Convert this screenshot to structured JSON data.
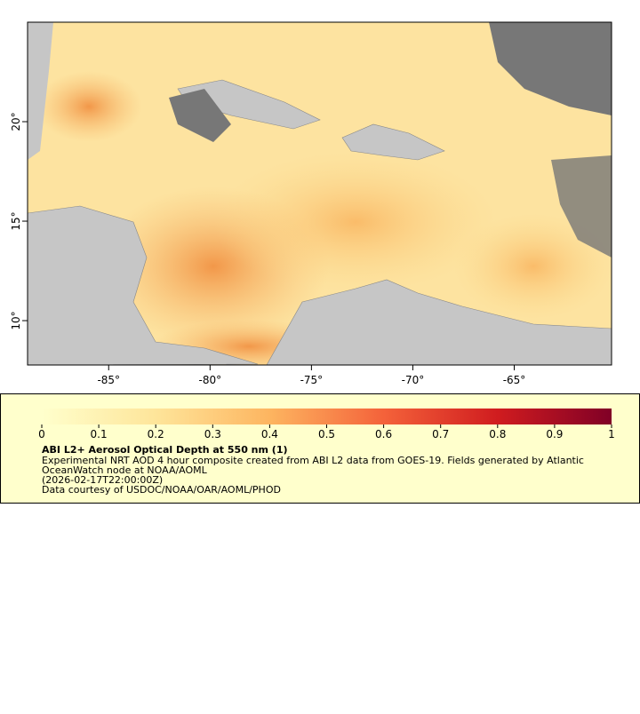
{
  "map": {
    "xlim": [
      -89,
      -60.2
    ],
    "ylim": [
      7.77,
      25
    ],
    "xticks": [
      {
        "value": -85,
        "label": "-85°"
      },
      {
        "value": -80,
        "label": "-80°"
      },
      {
        "value": -75,
        "label": "-75°"
      },
      {
        "value": -70,
        "label": "-70°"
      },
      {
        "value": -65,
        "label": "-65°"
      }
    ],
    "yticks": [
      {
        "value": 10,
        "label": "10°"
      },
      {
        "value": 15,
        "label": "15°"
      },
      {
        "value": 20,
        "label": "20°"
      }
    ]
  },
  "legend": {
    "range": [
      0,
      1
    ],
    "ticks": [
      0,
      0.1,
      0.2,
      0.3,
      0.4,
      0.5,
      0.6,
      0.7,
      0.8,
      0.9,
      1
    ],
    "title": "ABI L2+ Aerosol Optical Depth at 550 nm (1)",
    "lines": [
      "Experimental NRT AOD 4 hour composite created from ABI L2 data from GOES-19. Fields generated by Atlantic",
      "OceanWatch node at NOAA/AOML",
      "(2026-02-17T22:00:00Z)",
      "Data courtesy of USDOC/NOAA/OAR/AOML/PHOD"
    ]
  }
}
